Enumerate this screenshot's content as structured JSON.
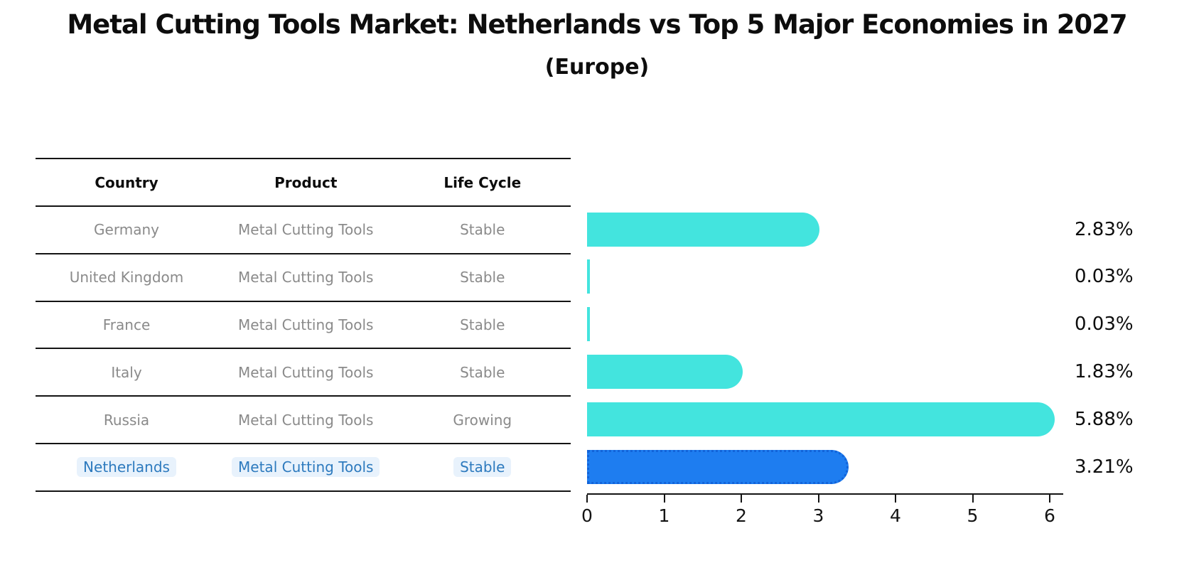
{
  "title": "Metal Cutting Tools Market: Netherlands vs Top 5 Major Economies in 2027",
  "subtitle": "(Europe)",
  "table": {
    "headers": [
      "Country",
      "Product",
      "Life Cycle"
    ],
    "rows": [
      {
        "country": "Germany",
        "product": "Metal Cutting Tools",
        "life_cycle": "Stable",
        "highlight": false
      },
      {
        "country": "United Kingdom",
        "product": "Metal Cutting Tools",
        "life_cycle": "Stable",
        "highlight": false
      },
      {
        "country": "France",
        "product": "Metal Cutting Tools",
        "life_cycle": "Stable",
        "highlight": false
      },
      {
        "country": "Italy",
        "product": "Metal Cutting Tools",
        "life_cycle": "Stable",
        "highlight": false
      },
      {
        "country": "Russia",
        "product": "Metal Cutting Tools",
        "life_cycle": "Growing",
        "highlight": false
      },
      {
        "country": "Netherlands",
        "product": "Metal Cutting Tools",
        "life_cycle": "Stable",
        "highlight": true
      }
    ]
  },
  "chart_data": {
    "type": "bar",
    "orientation": "horizontal",
    "categories": [
      "Germany",
      "United Kingdom",
      "France",
      "Italy",
      "Russia",
      "Netherlands"
    ],
    "values": [
      2.83,
      0.03,
      0.03,
      1.83,
      5.88,
      3.21
    ],
    "value_labels": [
      "2.83%",
      "0.03%",
      "0.03%",
      "1.83%",
      "5.88%",
      "3.21%"
    ],
    "title": "Metal Cutting Tools Market: Netherlands vs Top 5 Major Economies in 2027 (Europe)",
    "xlabel": "",
    "ylabel": "",
    "xlim": [
      0,
      6
    ],
    "xticks": [
      "0",
      "1",
      "2",
      "3",
      "4",
      "5",
      "6"
    ],
    "grid": false,
    "legend": false,
    "highlight_index": 5,
    "highlight_category": "Netherlands"
  },
  "colors": {
    "bar": "#43e4de",
    "highlight_bar": "#1e7df0",
    "highlight_bar_border": "#1263d9",
    "highlight_text": "#2d7abe",
    "highlight_text_bg": "#e8f2fc",
    "row_text": "#8a8a8a",
    "header_text": "#0d0d0d",
    "rule": "#141414"
  }
}
